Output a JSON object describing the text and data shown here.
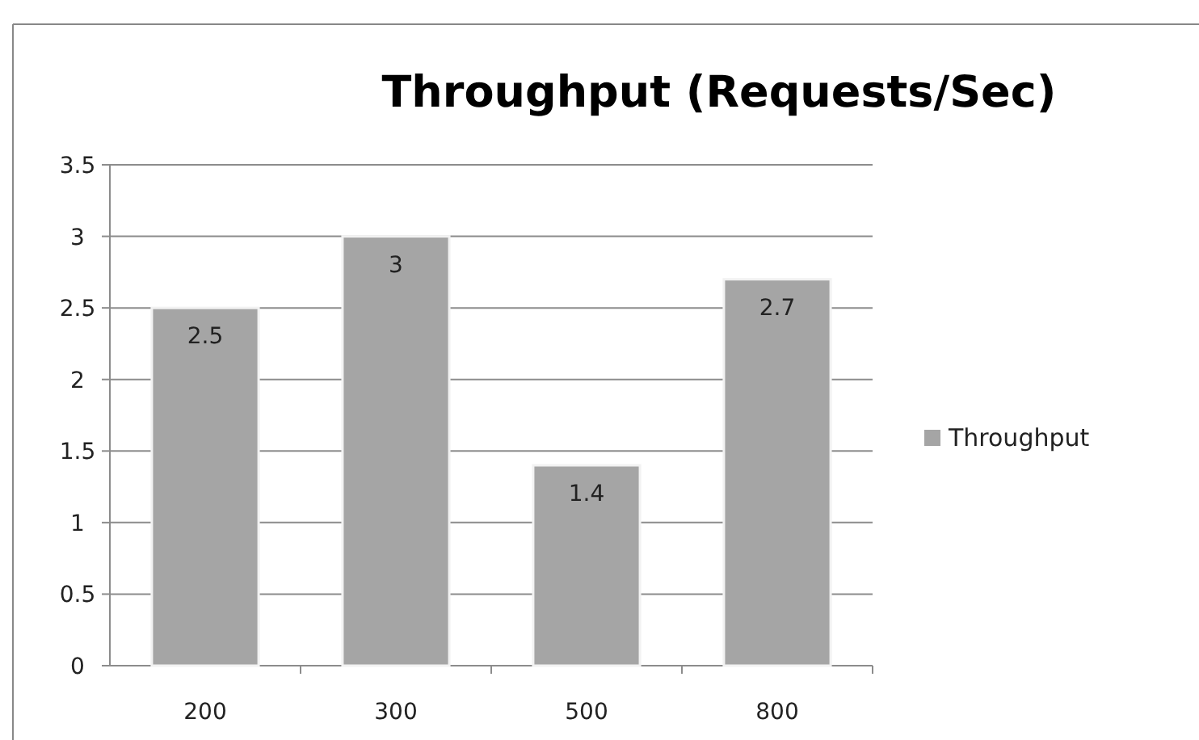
{
  "chart_data": {
    "type": "bar",
    "title": "Throughput (Requests/Sec)",
    "categories": [
      "200",
      "300",
      "500",
      "800"
    ],
    "series": [
      {
        "name": "Throughput",
        "color": "#a5a5a5",
        "values": [
          2.5,
          3,
          1.4,
          2.7
        ]
      }
    ],
    "ylim": [
      0,
      3.5
    ],
    "yticks": [
      0,
      {
        "value": 0.5,
        "label": "0.5"
      },
      1,
      {
        "value": 1.5,
        "label": "1.5"
      },
      2,
      {
        "value": 2.5,
        "label": "2.5"
      },
      3,
      {
        "value": 3.5,
        "label": "3.5"
      }
    ],
    "grid": "y",
    "legend": "right",
    "data_labels": true
  }
}
